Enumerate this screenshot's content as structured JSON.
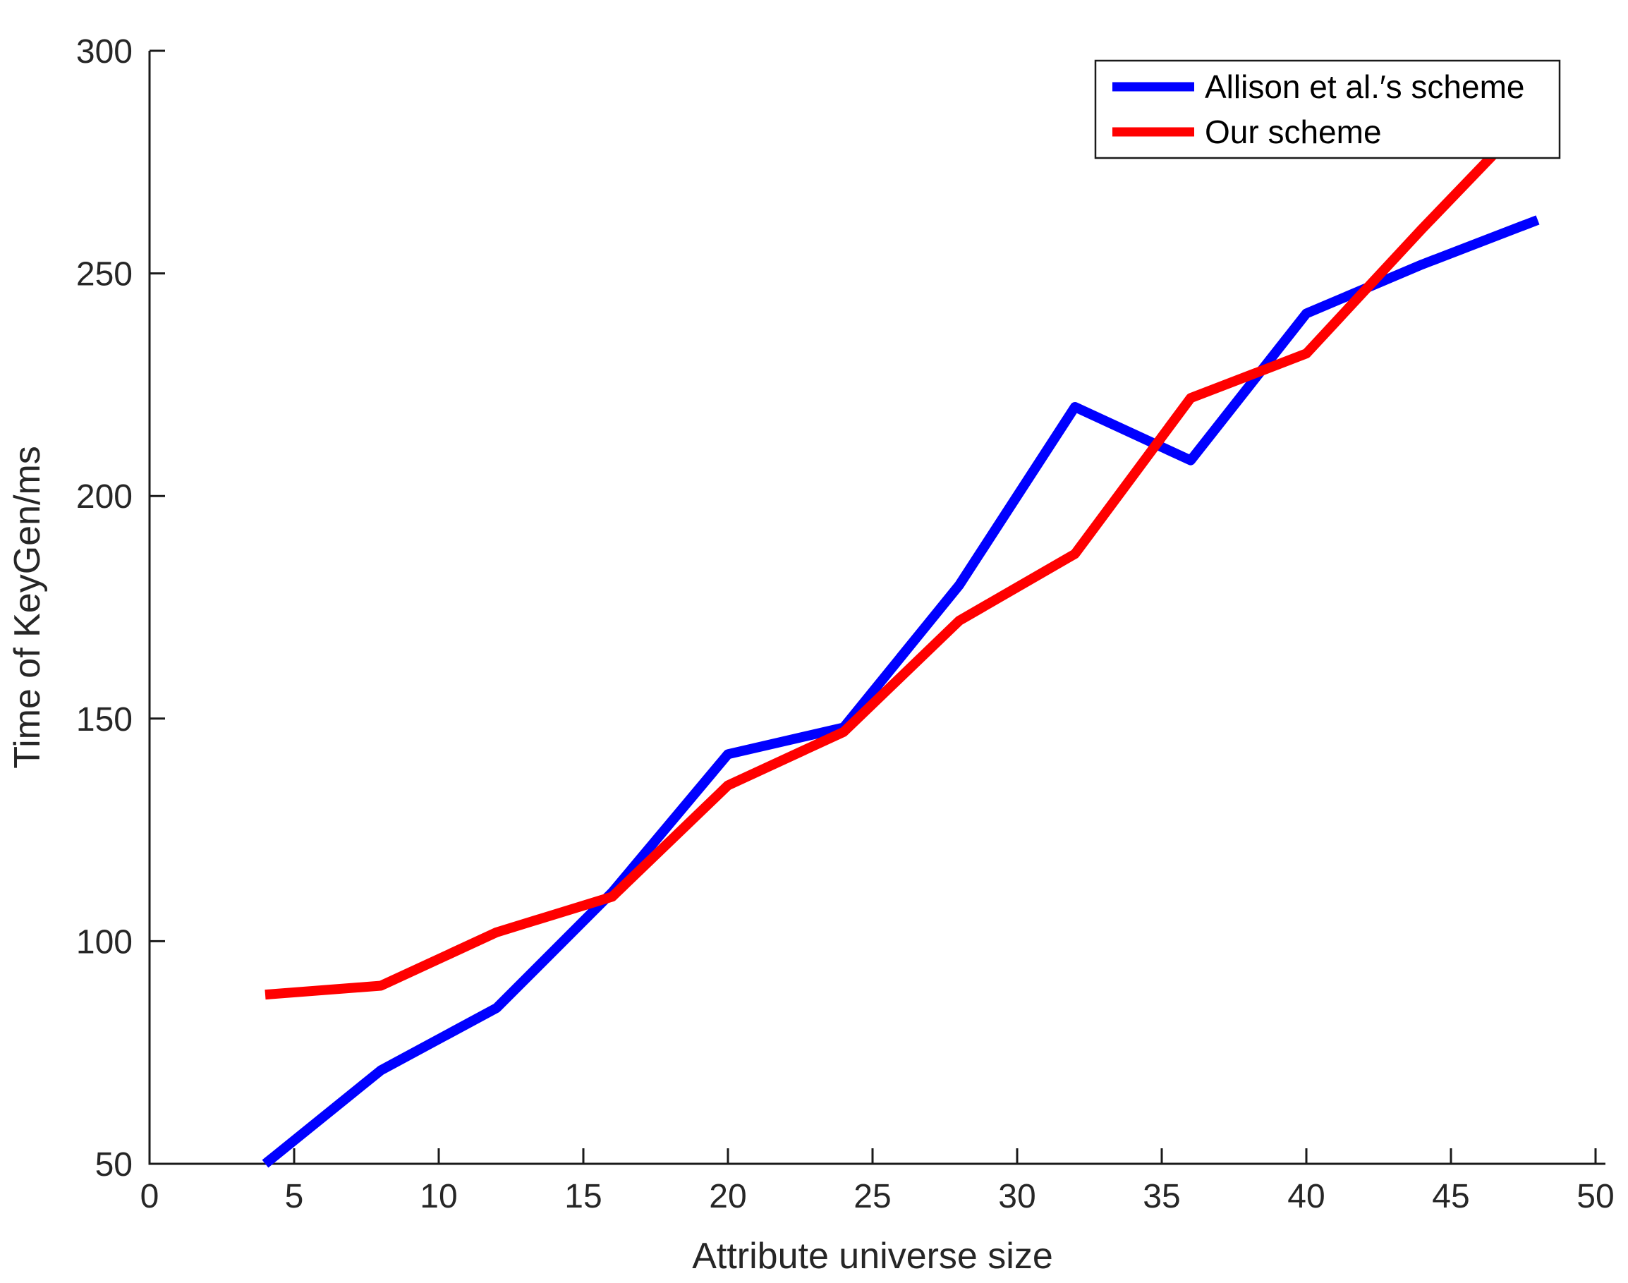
{
  "figure": {
    "background": "#ffffff",
    "axis_color": "#1a1a1a",
    "tick_label_color": "#262626"
  },
  "chart_data": {
    "type": "line",
    "title": "",
    "xlabel": "Attribute universe size",
    "ylabel": "Time of KeyGen/ms",
    "xlim": [
      0,
      50
    ],
    "ylim": [
      50,
      300
    ],
    "x_ticks": [
      0,
      5,
      10,
      15,
      20,
      25,
      30,
      35,
      40,
      45,
      50
    ],
    "y_ticks": [
      50,
      100,
      150,
      200,
      250,
      300
    ],
    "grid": false,
    "x": [
      4,
      8,
      12,
      16,
      20,
      24,
      28,
      32,
      36,
      40,
      44,
      48
    ],
    "series": [
      {
        "name": "Allison et al.′s scheme",
        "color": "#0000FF",
        "values": [
          50,
          71,
          85,
          111,
          142,
          148,
          180,
          220,
          208,
          241,
          252,
          262
        ]
      },
      {
        "name": "Our scheme",
        "color": "#FF0000",
        "values": [
          88,
          90,
          102,
          110,
          135,
          147,
          172,
          187,
          222,
          232,
          260,
          287
        ]
      }
    ],
    "legend": {
      "position": "top-right",
      "background": "#ffffff",
      "border_color": "#1a1a1a"
    }
  }
}
